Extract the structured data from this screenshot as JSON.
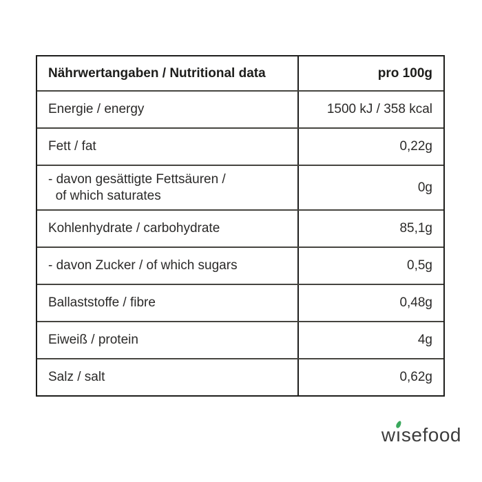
{
  "colors": {
    "table_border": "#1d1d1b",
    "row_line": "#45443f",
    "text": "#2b2a29",
    "logo_text": "#3d3d3d",
    "leaf_green": "#3aa85c"
  },
  "table": {
    "header": {
      "label": "Nährwertangaben / Nutritional data",
      "value": "pro 100g"
    },
    "rows": [
      {
        "label": "Energie / energy",
        "value": "1500 kJ / 358 kcal"
      },
      {
        "label": "Fett / fat",
        "value": "0,22g"
      },
      {
        "label": "- davon gesättigte Fettsäuren /\n  of which saturates",
        "value": "0g"
      },
      {
        "label": "Kohlenhydrate / carbohydrate",
        "value": "85,1g"
      },
      {
        "label": "- davon Zucker / of which sugars",
        "value": "0,5g"
      },
      {
        "label": "Ballaststoffe / fibre",
        "value": "0,48g"
      },
      {
        "label": "Eiweiß / protein",
        "value": "4g"
      },
      {
        "label": "Salz / salt",
        "value": "0,62g"
      }
    ]
  },
  "logo": {
    "name": "wisefood",
    "part_before_i": "w",
    "i_char": "ı",
    "part_after_i": "sefood"
  }
}
